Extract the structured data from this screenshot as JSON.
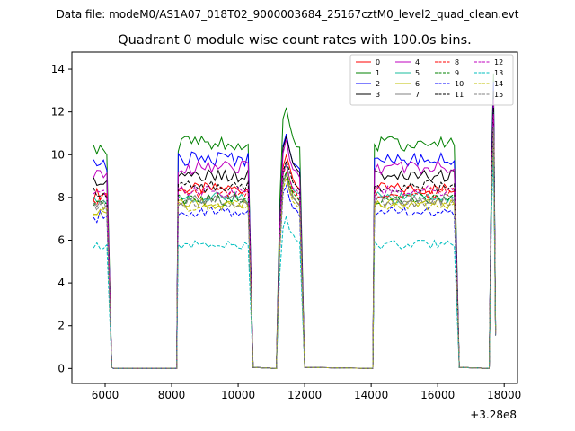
{
  "chart_data": {
    "type": "line",
    "suptitle": "Data file: modeM0/AS1A07_018T02_9000003684_25167cztM0_level2_quad_clean.evt",
    "title": "Quadrant 0 module wise count rates with 100.0s bins.",
    "xlabel": "",
    "ylabel": "",
    "x_offset_label": "+3.28e8",
    "xlim": [
      5000,
      18400
    ],
    "ylim": [
      -0.7,
      14.8
    ],
    "x_ticks": [
      6000,
      8000,
      10000,
      12000,
      14000,
      16000,
      18000
    ],
    "x_tick_labels": [
      "6000",
      "8000",
      "10000",
      "12000",
      "14000",
      "16000",
      "18000"
    ],
    "y_ticks": [
      0,
      2,
      4,
      6,
      8,
      10,
      12,
      14
    ],
    "y_tick_labels": [
      "0",
      "2",
      "4",
      "6",
      "8",
      "10",
      "12",
      "14"
    ],
    "legend_location": "upper right",
    "gaps": [
      [
        6200,
        8150
      ],
      [
        10450,
        11150
      ],
      [
        12000,
        14050
      ],
      [
        16650,
        17550
      ]
    ],
    "segments": [
      [
        5650,
        6200
      ],
      [
        8150,
        10450
      ],
      [
        11150,
        12000
      ],
      [
        14050,
        16650
      ],
      [
        17550,
        17750
      ]
    ],
    "series": [
      {
        "name": "0",
        "color": "#ff0000",
        "dash": "solid",
        "level": 8.4,
        "peak": 10.0,
        "spike": 12.3
      },
      {
        "name": "1",
        "color": "#008000",
        "dash": "solid",
        "level": 10.5,
        "peak": 12.2,
        "spike": 13.8
      },
      {
        "name": "2",
        "color": "#0000ff",
        "dash": "solid",
        "level": 9.8,
        "peak": 11.0,
        "spike": 13.4
      },
      {
        "name": "3",
        "color": "#000000",
        "dash": "solid",
        "level": 9.0,
        "peak": 10.9,
        "spike": 13.0
      },
      {
        "name": "4",
        "color": "#bf00bf",
        "dash": "solid",
        "level": 9.4,
        "peak": 10.6,
        "spike": 12.6
      },
      {
        "name": "5",
        "color": "#1abc9c",
        "dash": "solid",
        "level": 8.0,
        "peak": 9.6,
        "spike": 12.0
      },
      {
        "name": "6",
        "color": "#bfbf00",
        "dash": "solid",
        "level": 7.7,
        "peak": 9.2,
        "spike": 11.6
      },
      {
        "name": "7",
        "color": "#808080",
        "dash": "solid",
        "level": 7.9,
        "peak": 9.0,
        "spike": 11.2
      },
      {
        "name": "8",
        "color": "#ff0000",
        "dash": "dashed",
        "level": 8.2,
        "peak": 9.4,
        "spike": 11.8
      },
      {
        "name": "9",
        "color": "#008000",
        "dash": "dashed",
        "level": 7.9,
        "peak": 9.3,
        "spike": 11.4
      },
      {
        "name": "10",
        "color": "#0000ff",
        "dash": "dashed",
        "level": 7.3,
        "peak": 8.6,
        "spike": 10.8
      },
      {
        "name": "11",
        "color": "#000000",
        "dash": "dashed",
        "level": 8.5,
        "peak": 9.8,
        "spike": 12.2
      },
      {
        "name": "12",
        "color": "#bf00bf",
        "dash": "dashed",
        "level": 8.3,
        "peak": 9.6,
        "spike": 11.9
      },
      {
        "name": "13",
        "color": "#00bfbf",
        "dash": "dashed",
        "level": 5.8,
        "peak": 7.0,
        "spike": 10.0
      },
      {
        "name": "14",
        "color": "#bfbf00",
        "dash": "dashed",
        "level": 7.6,
        "peak": 8.9,
        "spike": 11.0
      },
      {
        "name": "15",
        "color": "#808080",
        "dash": "dashed",
        "level": 7.8,
        "peak": 9.1,
        "spike": 11.3
      }
    ]
  }
}
